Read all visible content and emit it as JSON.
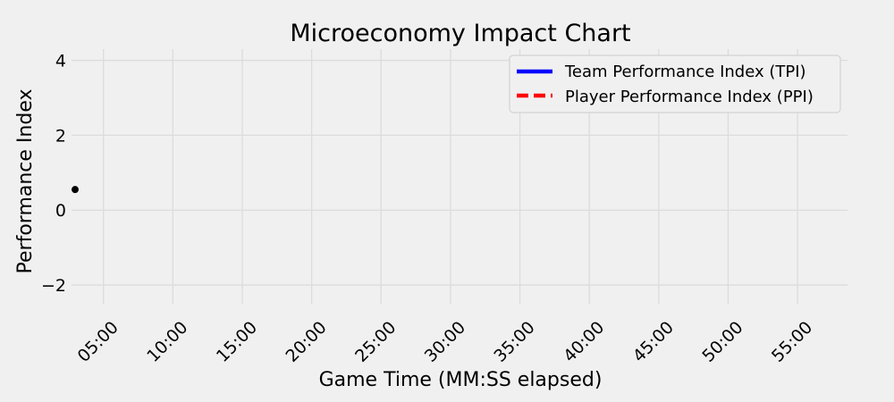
{
  "chart_data": {
    "type": "line",
    "title": "Microeconomy Impact Chart",
    "xlabel": "Game Time (MM:SS elapsed)",
    "ylabel": "Performance Index",
    "x_unit": "minutes elapsed",
    "xlim": [
      2.7,
      58.6
    ],
    "ylim": [
      -2.5,
      4.3
    ],
    "x_ticks": [
      {
        "value": 5,
        "label": "05:00"
      },
      {
        "value": 10,
        "label": "10:00"
      },
      {
        "value": 15,
        "label": "15:00"
      },
      {
        "value": 20,
        "label": "20:00"
      },
      {
        "value": 25,
        "label": "25:00"
      },
      {
        "value": 30,
        "label": "30:00"
      },
      {
        "value": 35,
        "label": "35:00"
      },
      {
        "value": 40,
        "label": "40:00"
      },
      {
        "value": 45,
        "label": "45:00"
      },
      {
        "value": 50,
        "label": "50:00"
      },
      {
        "value": 55,
        "label": "55:00"
      }
    ],
    "y_ticks": [
      {
        "value": -2,
        "label": "−2"
      },
      {
        "value": 0,
        "label": "0"
      },
      {
        "value": 2,
        "label": "2"
      },
      {
        "value": 4,
        "label": "4"
      }
    ],
    "series": [
      {
        "name": "Team Performance Index (TPI)",
        "color": "#0000ff",
        "style": "solid",
        "x": [],
        "y": []
      },
      {
        "name": "Player Performance Index (PPI)",
        "color": "#ff0000",
        "style": "dashed",
        "x": [],
        "y": []
      }
    ],
    "markers": [
      {
        "x": 2.7,
        "y": 0.55,
        "color": "#000000"
      }
    ],
    "grid": true,
    "legend_position": "top-right"
  }
}
